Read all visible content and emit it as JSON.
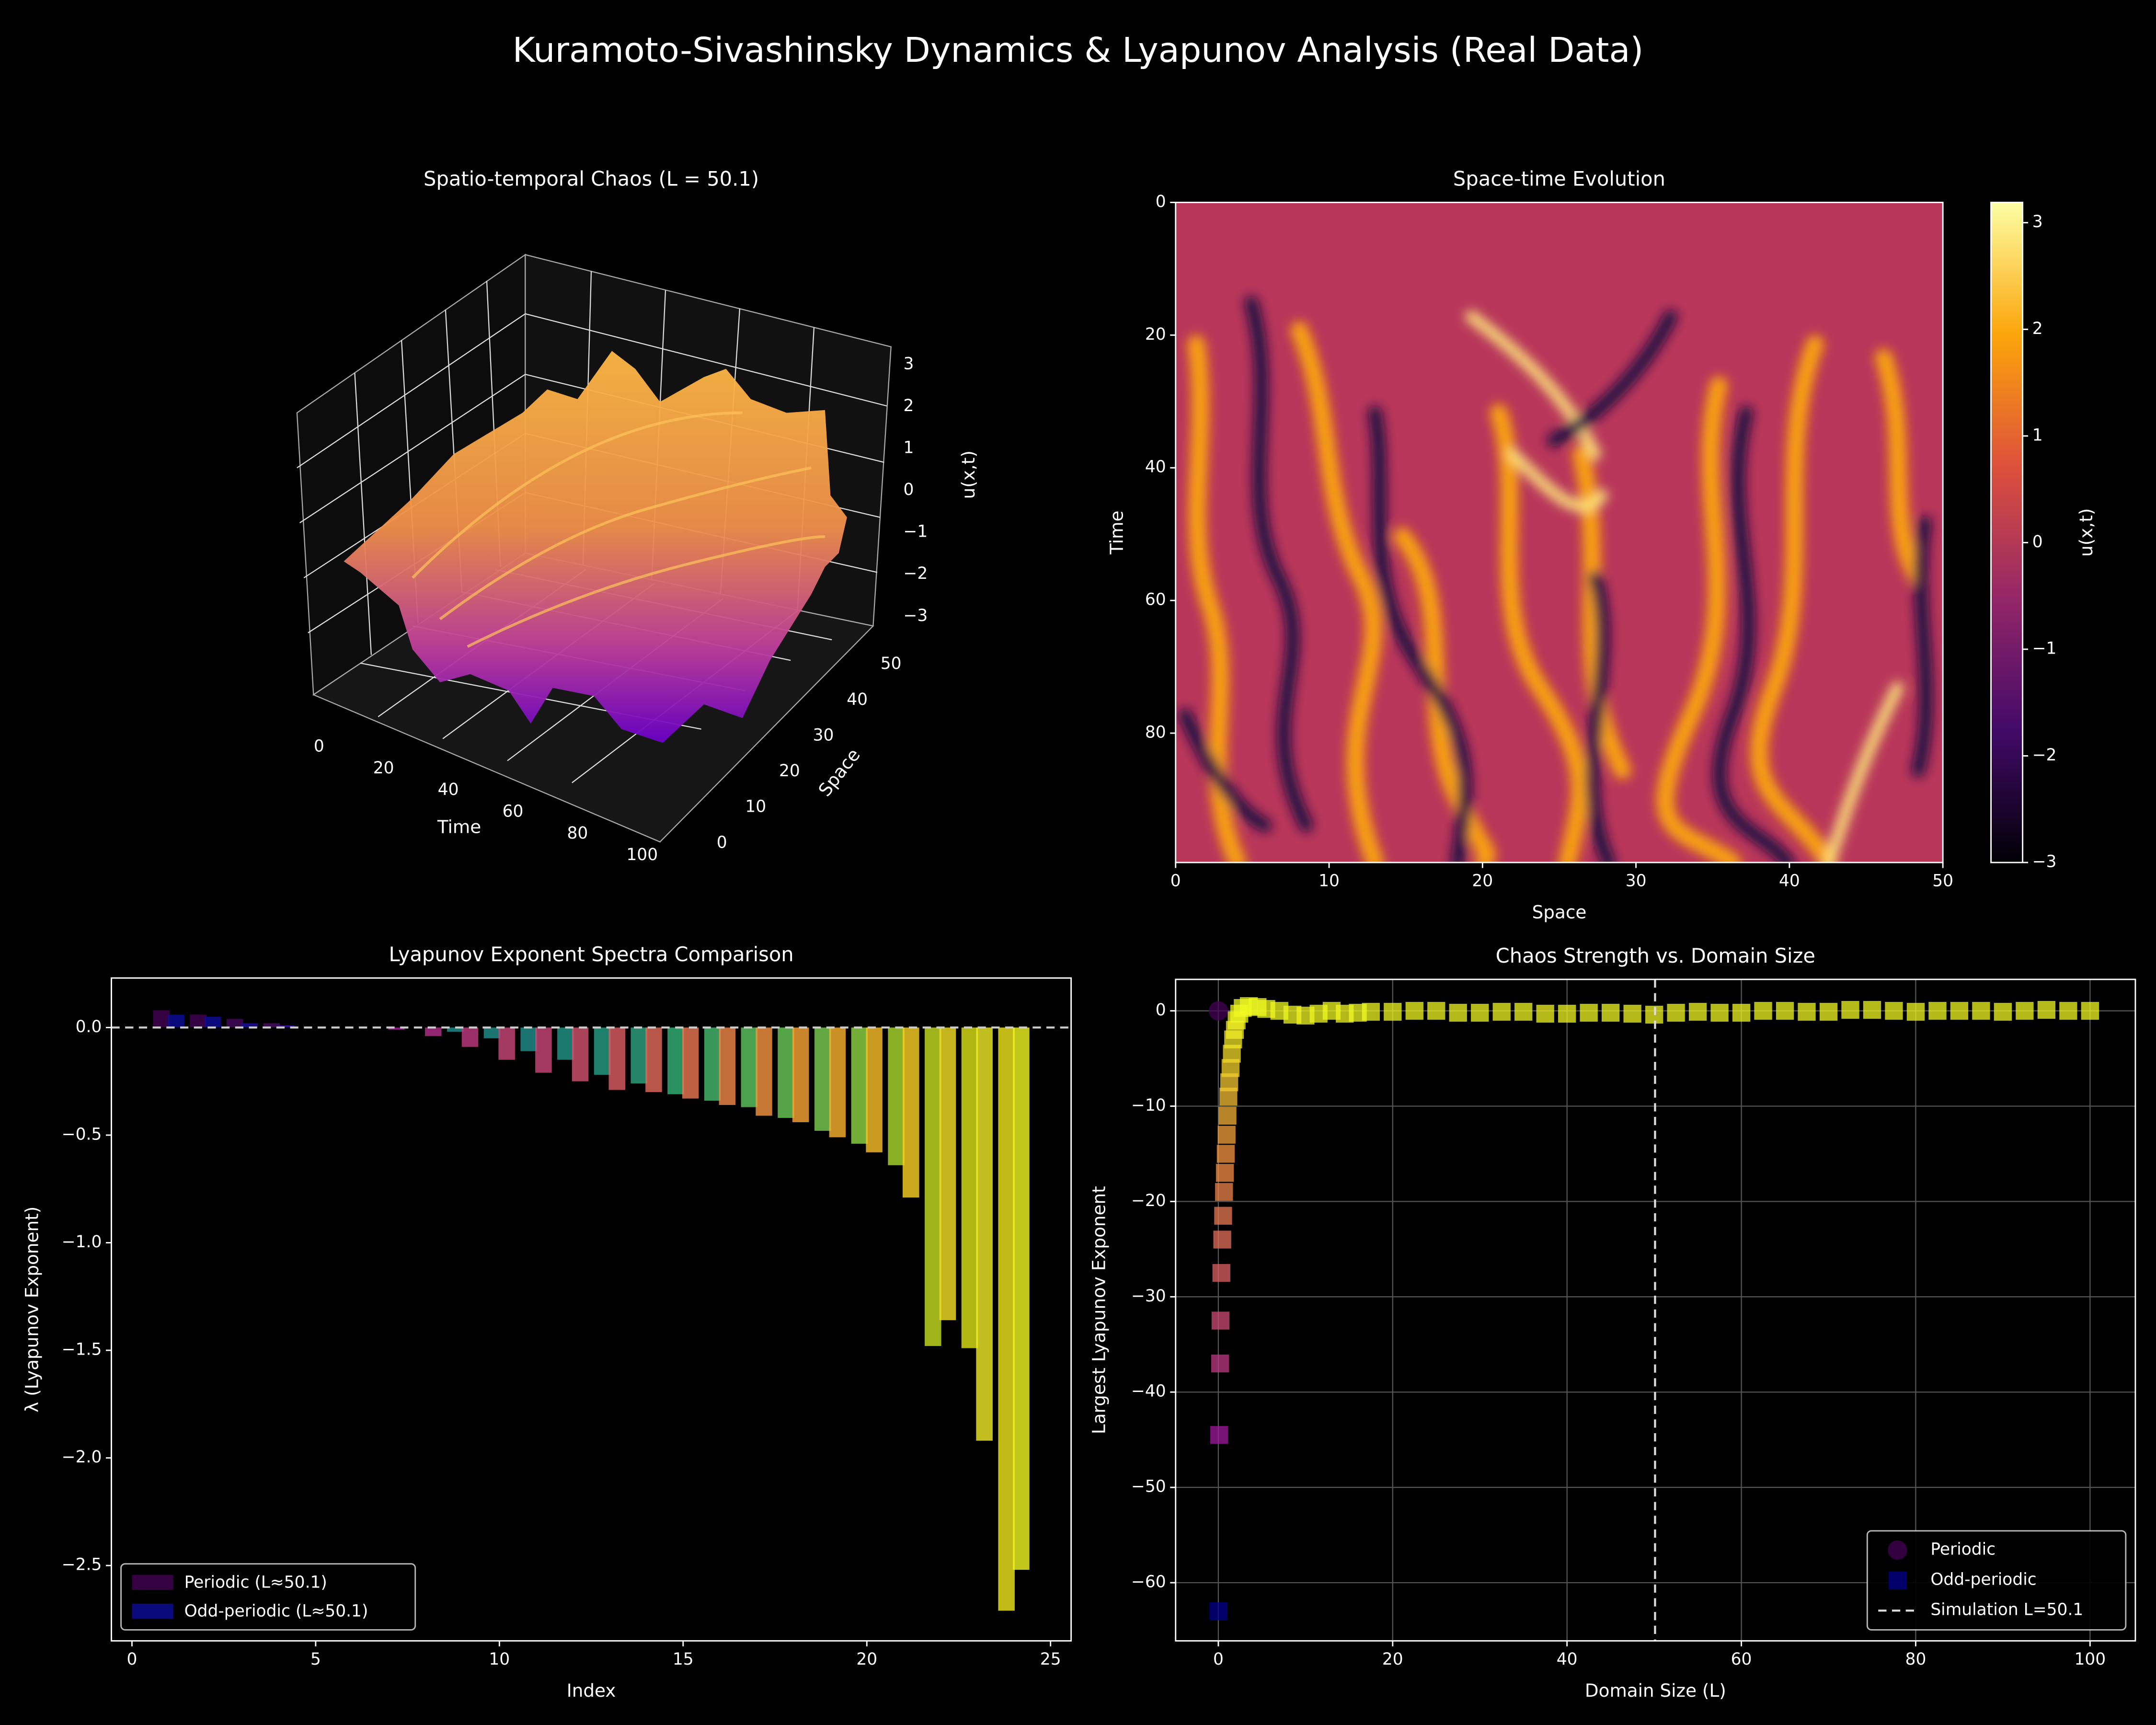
{
  "title": "Kuramoto-Sivashinsky Dynamics & Lyapunov Analysis (Real Data)",
  "chart_data": [
    {
      "type": "surface3d",
      "title": "Spatio-temporal Chaos (L = 50.1)",
      "xlabel": "Time",
      "ylabel": "Space",
      "zlabel": "u(x,t)",
      "xticks": [
        0,
        20,
        40,
        60,
        80,
        100
      ],
      "yticks": [
        0,
        10,
        20,
        30,
        40,
        50
      ],
      "zticks": [
        {
          "value": -3,
          "label": "−3"
        },
        {
          "value": -2,
          "label": "−2"
        },
        {
          "value": -1,
          "label": "−1"
        },
        0,
        1,
        2,
        3
      ]
    },
    {
      "type": "heatmap",
      "title": "Space-time Evolution",
      "xlabel": "Space",
      "ylabel": "Time",
      "xlim": [
        0,
        50
      ],
      "xticks": [
        0,
        10,
        20,
        30,
        40,
        50
      ],
      "ylim": [
        0,
        99.5
      ],
      "yticks": [
        0,
        20,
        40,
        60,
        80
      ],
      "y_inverted": true,
      "colormap": [
        "#000004",
        "#420a68",
        "#932667",
        "#dd513a",
        "#fca50a",
        "#fcffa4"
      ],
      "colorbar": {
        "label": "u(x,t)",
        "clim": [
          -3,
          3.19
        ],
        "ticks": [
          {
            "value": -3,
            "label": "−3"
          },
          {
            "value": -2,
            "label": "−2"
          },
          {
            "value": -1,
            "label": "−1"
          },
          0,
          1,
          2,
          3
        ]
      }
    },
    {
      "type": "bar",
      "title": "Lyapunov Exponent Spectra Comparison",
      "xlabel": "Index",
      "ylabel": "λ (Lyapunov Exponent)",
      "xlim": [
        -0.56,
        25.56
      ],
      "xticks": [
        0,
        5,
        10,
        15,
        20,
        25
      ],
      "ylim": [
        -2.85,
        0.23
      ],
      "yticks": [
        {
          "value": 0,
          "label": "0.0"
        },
        {
          "value": -0.5,
          "label": "−0.5"
        },
        {
          "value": -1,
          "label": "−1.0"
        },
        {
          "value": -1.5,
          "label": "−1.5"
        },
        {
          "value": -2,
          "label": "−2.0"
        },
        {
          "value": -2.5,
          "label": "−2.5"
        }
      ],
      "legend": "lower left",
      "x": [
        1,
        2,
        3,
        4,
        5,
        6,
        7,
        8,
        9,
        10,
        11,
        12,
        13,
        14,
        15,
        16,
        17,
        18,
        19,
        20,
        21,
        22,
        23,
        24
      ],
      "series": [
        {
          "name": "Periodic (L≈50.1)",
          "color": "#440154",
          "values": [
            0.08,
            0.06,
            0.04,
            0.02,
            0,
            0,
            0,
            0,
            -0.02,
            -0.05,
            -0.11,
            -0.15,
            -0.22,
            -0.26,
            -0.31,
            -0.34,
            -0.37,
            -0.42,
            -0.48,
            -0.54,
            -0.64,
            -1.48,
            -1.49,
            -2.71
          ],
          "colors": [
            "#440154",
            "#440154",
            "#46085c",
            "#471063",
            "#21918c",
            "#21918c",
            "#21918c",
            "#21918c",
            "#21918c",
            "#21918c",
            "#21918c",
            "#22978a",
            "#26a085",
            "#2ea67f",
            "#35b779",
            "#48bd70",
            "#5ec962",
            "#6ccd5a",
            "#7ad151",
            "#90d743",
            "#addc30",
            "#c8e020",
            "#dde318",
            "#f3e91c"
          ]
        },
        {
          "name": "Odd-periodic (L≈50.1)",
          "color": "#0d0d9c",
          "values": [
            0.06,
            0.05,
            0.02,
            0.01,
            0,
            0,
            -0.01,
            -0.04,
            -0.09,
            -0.15,
            -0.21,
            -0.25,
            -0.29,
            -0.3,
            -0.33,
            -0.36,
            -0.41,
            -0.44,
            -0.51,
            -0.58,
            -0.79,
            -1.36,
            -1.92,
            -2.52
          ],
          "colors": [
            "#0d0d9c",
            "#0d0d9c",
            "#1a0fa0",
            "#3b10a8",
            "#9c179e",
            "#9c179e",
            "#a8219a",
            "#b52f8c",
            "#c23b81",
            "#cb4778",
            "#cc4778",
            "#d5536f",
            "#de5f65",
            "#e66c5c",
            "#ed7953",
            "#f48849",
            "#f89540",
            "#fca636",
            "#fdb42f",
            "#fec229",
            "#fdd225",
            "#f8e125",
            "#f3ee27",
            "#f0f921"
          ]
        }
      ]
    },
    {
      "type": "scatter",
      "title": "Chaos Strength vs. Domain Size",
      "xlabel": "Domain Size (L)",
      "ylabel": "Largest Lyapunov Exponent",
      "xlim": [
        -4.9,
        105.2
      ],
      "xticks": [
        0,
        20,
        40,
        60,
        80,
        100
      ],
      "ylim": [
        -66.1,
        3.3
      ],
      "yticks": [
        {
          "value": -60,
          "label": "−60"
        },
        {
          "value": -50,
          "label": "−50"
        },
        {
          "value": -40,
          "label": "−40"
        },
        {
          "value": -30,
          "label": "−30"
        },
        {
          "value": -20,
          "label": "−20"
        },
        {
          "value": -10,
          "label": "−10"
        },
        0
      ],
      "grid": true,
      "legend": "lower right",
      "colormap": [
        "#9c179e",
        "#d8576b",
        "#f89540",
        "#f0f921"
      ],
      "clim": [
        -45,
        0
      ],
      "vline": {
        "x": 50.1,
        "label": "Simulation L=50.1",
        "color": "#dddddd"
      },
      "series": [
        {
          "marker": "s",
          "colormapped": true,
          "x": [
            0.1,
            0.2,
            0.25,
            0.35,
            0.45,
            0.55,
            0.65,
            0.75,
            0.85,
            0.95,
            1.05,
            1.15,
            1.25,
            1.4,
            1.55,
            1.7,
            1.9,
            2.1,
            2.4,
            2.8,
            3.5,
            4.5,
            5.5,
            7,
            8.5,
            10,
            11.5,
            13,
            14.5,
            16,
            17.5,
            20,
            22.5,
            25,
            27.5,
            30,
            32.5,
            35,
            37.5,
            40,
            42.5,
            45,
            47.5,
            50,
            52.5,
            55,
            57.5,
            60,
            62.5,
            65,
            67.5,
            70,
            72.5,
            75,
            77.5,
            80,
            82.5,
            85,
            87.5,
            90,
            92.5,
            95,
            97.5,
            100
          ],
          "values": [
            -44.5,
            -37,
            -32.5,
            -27.5,
            -24,
            -21.5,
            -19,
            -17,
            -15,
            -13,
            -11,
            -9,
            -7.5,
            -6,
            -4.5,
            -3,
            -2,
            -1,
            -0.3,
            0.3,
            0.5,
            0.4,
            0.2,
            0,
            -0.4,
            -0.5,
            -0.3,
            0,
            -0.3,
            -0.2,
            -0.1,
            -0.1,
            0,
            0,
            -0.2,
            -0.2,
            -0.1,
            -0.1,
            -0.3,
            -0.3,
            -0.2,
            -0.2,
            -0.3,
            -0.4,
            -0.2,
            -0.1,
            -0.2,
            -0.2,
            0,
            0,
            -0.1,
            -0.1,
            0.1,
            0.1,
            0,
            -0.1,
            0,
            0,
            0,
            -0.1,
            0,
            0.1,
            0,
            0
          ]
        },
        {
          "name": "Periodic",
          "marker": "o",
          "color": "#440154",
          "x": [
            0
          ],
          "values": [
            0
          ]
        },
        {
          "name": "Odd-periodic",
          "marker": "s",
          "color": "#00008b",
          "x": [
            0
          ],
          "values": [
            -63
          ]
        }
      ]
    }
  ]
}
